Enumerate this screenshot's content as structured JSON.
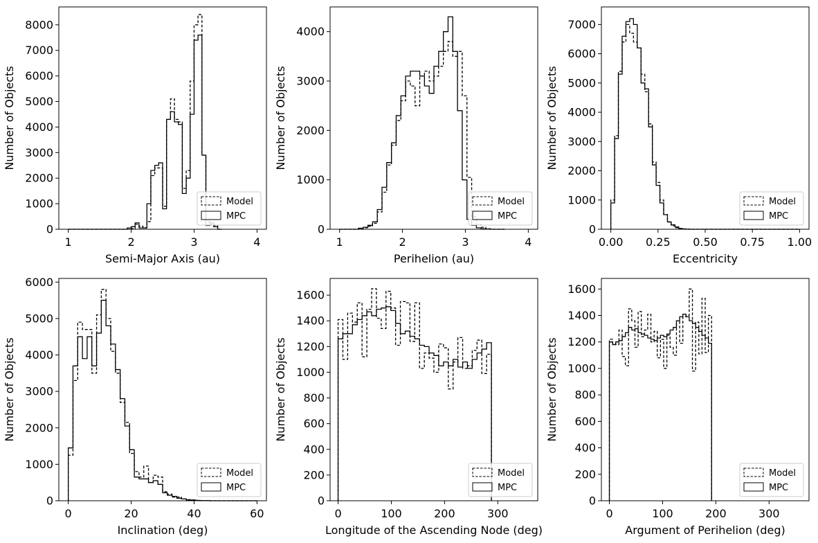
{
  "figure": {
    "layout": "2x3 grid of step histograms"
  },
  "legend": {
    "model_label": "Model",
    "mpc_label": "MPC",
    "placement": "lower-right"
  },
  "chart_data": [
    {
      "type": "histogram",
      "xlabel": "Semi-Major Axis (au)",
      "ylabel": "Number of Objects",
      "xlim": [
        0.85,
        4.15
      ],
      "ylim": [
        0,
        8700
      ],
      "xticks": [
        1,
        2,
        3,
        4
      ],
      "xtick_labels": [
        "1",
        "2",
        "3",
        "4"
      ],
      "yticks": [
        0,
        1000,
        2000,
        3000,
        4000,
        5000,
        6000,
        7000,
        8000
      ],
      "ytick_labels": [
        "0",
        "1000",
        "2000",
        "3000",
        "4000",
        "5000",
        "6000",
        "7000",
        "8000"
      ],
      "bin_start": 1.0,
      "bin_width": 0.0625,
      "series": [
        {
          "name": "Model",
          "style": "dashed",
          "values": [
            0,
            0,
            0,
            0,
            0,
            0,
            0,
            0,
            0,
            0,
            0,
            0,
            0,
            0,
            0,
            0,
            30,
            200,
            120,
            60,
            300,
            2100,
            2400,
            2400,
            900,
            4300,
            5100,
            4300,
            4200,
            1600,
            2300,
            5800,
            8000,
            8400,
            2900,
            300,
            200,
            150,
            0
          ]
        },
        {
          "name": "MPC",
          "style": "solid",
          "values": [
            0,
            0,
            0,
            0,
            0,
            0,
            0,
            0,
            0,
            0,
            0,
            0,
            0,
            0,
            0,
            50,
            100,
            250,
            50,
            50,
            1000,
            2300,
            2500,
            2600,
            800,
            4300,
            4600,
            4200,
            4100,
            1400,
            2000,
            4500,
            7400,
            7600,
            2900,
            150,
            250,
            100,
            0
          ]
        }
      ]
    },
    {
      "type": "histogram",
      "xlabel": "Perihelion (au)",
      "ylabel": "Number of Objects",
      "xlim": [
        0.85,
        4.15
      ],
      "ylim": [
        0,
        4500
      ],
      "xticks": [
        1,
        2,
        3,
        4
      ],
      "xtick_labels": [
        "1",
        "2",
        "3",
        "4"
      ],
      "yticks": [
        0,
        1000,
        2000,
        3000,
        4000
      ],
      "ytick_labels": [
        "0",
        "1000",
        "2000",
        "3000",
        "4000"
      ],
      "bin_start": 1.0,
      "bin_width": 0.075,
      "series": [
        {
          "name": "Model",
          "style": "dashed",
          "values": [
            0,
            0,
            0,
            0,
            10,
            30,
            60,
            120,
            350,
            750,
            1300,
            1700,
            2200,
            2600,
            3000,
            2900,
            2500,
            3100,
            3200,
            3000,
            3100,
            3300,
            3600,
            3800,
            3500,
            3600,
            2700,
            1050,
            250,
            100,
            40,
            10,
            0,
            0,
            0
          ]
        },
        {
          "name": "MPC",
          "style": "solid",
          "values": [
            0,
            0,
            0,
            0,
            20,
            40,
            80,
            150,
            400,
            850,
            1350,
            1750,
            2300,
            2700,
            3100,
            3200,
            3200,
            3100,
            2900,
            2750,
            3300,
            3600,
            4000,
            4300,
            3600,
            2400,
            1000,
            200,
            80,
            30,
            10,
            5,
            0,
            0,
            0
          ]
        }
      ]
    },
    {
      "type": "histogram",
      "xlabel": "Eccentricity",
      "ylabel": "Number of Objects",
      "xlim": [
        -0.05,
        1.05
      ],
      "ylim": [
        0,
        7600
      ],
      "xticks": [
        0,
        0.25,
        0.5,
        0.75,
        1.0
      ],
      "xtick_labels": [
        "0.00",
        "0.25",
        "0.50",
        "0.75",
        "1.00"
      ],
      "yticks": [
        0,
        1000,
        2000,
        3000,
        4000,
        5000,
        6000,
        7000
      ],
      "ytick_labels": [
        "0",
        "1000",
        "2000",
        "3000",
        "4000",
        "5000",
        "6000",
        "7000"
      ],
      "bin_start": 0.0,
      "bin_width": 0.02,
      "series": [
        {
          "name": "Model",
          "style": "dashed",
          "values": [
            1000,
            3200,
            5400,
            6400,
            7000,
            6700,
            6400,
            6200,
            5300,
            4700,
            3600,
            2300,
            1600,
            1000,
            500,
            250,
            120,
            50,
            30,
            15,
            5,
            0,
            0,
            0,
            0,
            0,
            0,
            0,
            0,
            0,
            0,
            0,
            0,
            0,
            0,
            0,
            0,
            0,
            0,
            0,
            0,
            0,
            0,
            0,
            0,
            0,
            0,
            0,
            0,
            0
          ]
        },
        {
          "name": "MPC",
          "style": "solid",
          "values": [
            900,
            3100,
            5300,
            6600,
            7100,
            7200,
            7000,
            6200,
            5000,
            4800,
            3500,
            2200,
            1500,
            900,
            500,
            250,
            150,
            80,
            20,
            5,
            0,
            0,
            0,
            0,
            0,
            0,
            0,
            0,
            0,
            0,
            0,
            0,
            0,
            0,
            0,
            0,
            0,
            0,
            0,
            0,
            0,
            0,
            0,
            0,
            0,
            0,
            0,
            0,
            0,
            0
          ]
        }
      ]
    },
    {
      "type": "histogram",
      "xlabel": "Inclination (deg)",
      "ylabel": "Number of Objects",
      "xlim": [
        -3,
        63
      ],
      "ylim": [
        0,
        6100
      ],
      "xticks": [
        0,
        20,
        40,
        60
      ],
      "xtick_labels": [
        "0",
        "20",
        "40",
        "60"
      ],
      "yticks": [
        0,
        1000,
        2000,
        3000,
        4000,
        5000,
        6000
      ],
      "ytick_labels": [
        "0",
        "1000",
        "2000",
        "3000",
        "4000",
        "5000",
        "6000"
      ],
      "bin_start": 0,
      "bin_width": 1.5,
      "series": [
        {
          "name": "Model",
          "style": "dashed",
          "values": [
            1250,
            3300,
            4900,
            4700,
            4700,
            3500,
            5100,
            5800,
            5000,
            4100,
            3500,
            2700,
            2150,
            1300,
            800,
            650,
            950,
            500,
            700,
            650,
            250,
            180,
            100,
            100,
            50,
            30,
            20,
            10,
            5,
            5,
            0,
            0,
            0,
            0,
            0,
            0,
            0,
            0,
            0,
            0
          ]
        },
        {
          "name": "MPC",
          "style": "solid",
          "values": [
            1450,
            3700,
            4500,
            3900,
            4500,
            3700,
            4600,
            5500,
            4800,
            4300,
            3600,
            2800,
            2050,
            1400,
            650,
            600,
            600,
            500,
            550,
            450,
            220,
            150,
            120,
            70,
            50,
            20,
            20,
            10,
            5,
            5,
            0,
            0,
            0,
            0,
            0,
            0,
            0,
            0,
            0,
            0
          ]
        }
      ]
    },
    {
      "type": "histogram",
      "xlabel": "Longitude of the Ascending Node (deg)",
      "ylabel": "Number of Objects",
      "xlim": [
        -15,
        375
      ],
      "ylim": [
        0,
        1730
      ],
      "xticks": [
        0,
        100,
        200,
        300
      ],
      "xtick_labels": [
        "0",
        "100",
        "200",
        "300"
      ],
      "yticks": [
        0,
        200,
        400,
        600,
        800,
        1000,
        1200,
        1400,
        1600
      ],
      "ytick_labels": [
        "0",
        "200",
        "400",
        "600",
        "800",
        "1000",
        "1200",
        "1400",
        "1600"
      ],
      "bin_start": 0,
      "bin_width": 9,
      "series": [
        {
          "name": "Model",
          "style": "dashed",
          "values": [
            1410,
            1100,
            1460,
            1390,
            1540,
            1120,
            1490,
            1650,
            1420,
            1340,
            1630,
            1500,
            1210,
            1550,
            1540,
            1240,
            1540,
            1030,
            1150,
            1110,
            1000,
            1220,
            1190,
            870,
            1080,
            1270,
            1030,
            1050,
            1170,
            1250,
            990,
            1140
          ]
        },
        {
          "name": "MPC",
          "style": "solid",
          "values": [
            1260,
            1300,
            1300,
            1370,
            1410,
            1440,
            1470,
            1440,
            1490,
            1500,
            1510,
            1480,
            1380,
            1300,
            1320,
            1280,
            1260,
            1210,
            1200,
            1150,
            1130,
            1050,
            1080,
            1050,
            1100,
            1040,
            1080,
            1030,
            1100,
            1150,
            1180,
            1230
          ]
        }
      ]
    },
    {
      "type": "histogram",
      "xlabel": "Argument of Perihelion (deg)",
      "ylabel": "Number of Objects",
      "xlim": [
        -15,
        375
      ],
      "ylim": [
        0,
        1680
      ],
      "xticks": [
        0,
        100,
        200,
        300
      ],
      "xtick_labels": [
        "0",
        "100",
        "200",
        "300"
      ],
      "yticks": [
        0,
        200,
        400,
        600,
        800,
        1000,
        1200,
        1400,
        1600
      ],
      "ytick_labels": [
        "0",
        "200",
        "400",
        "600",
        "800",
        "1000",
        "1200",
        "1400",
        "1600"
      ],
      "bin_start": 0,
      "bin_width": 6,
      "series": [
        {
          "name": "Model",
          "style": "dashed",
          "values": [
            1220,
            1190,
            1180,
            1290,
            1090,
            1020,
            1450,
            1360,
            1160,
            1430,
            1240,
            1290,
            1410,
            1200,
            1280,
            1080,
            1220,
            1000,
            1250,
            1160,
            1100,
            1360,
            1190,
            1390,
            1400,
            1600,
            980,
            1350,
            1110,
            1530,
            1120,
            1400
          ]
        },
        {
          "name": "MPC",
          "style": "solid",
          "values": [
            1200,
            1180,
            1200,
            1210,
            1240,
            1270,
            1310,
            1290,
            1300,
            1270,
            1260,
            1250,
            1230,
            1220,
            1210,
            1230,
            1250,
            1240,
            1260,
            1290,
            1310,
            1360,
            1390,
            1410,
            1390,
            1360,
            1340,
            1310,
            1280,
            1250,
            1230,
            1190
          ]
        }
      ]
    }
  ]
}
